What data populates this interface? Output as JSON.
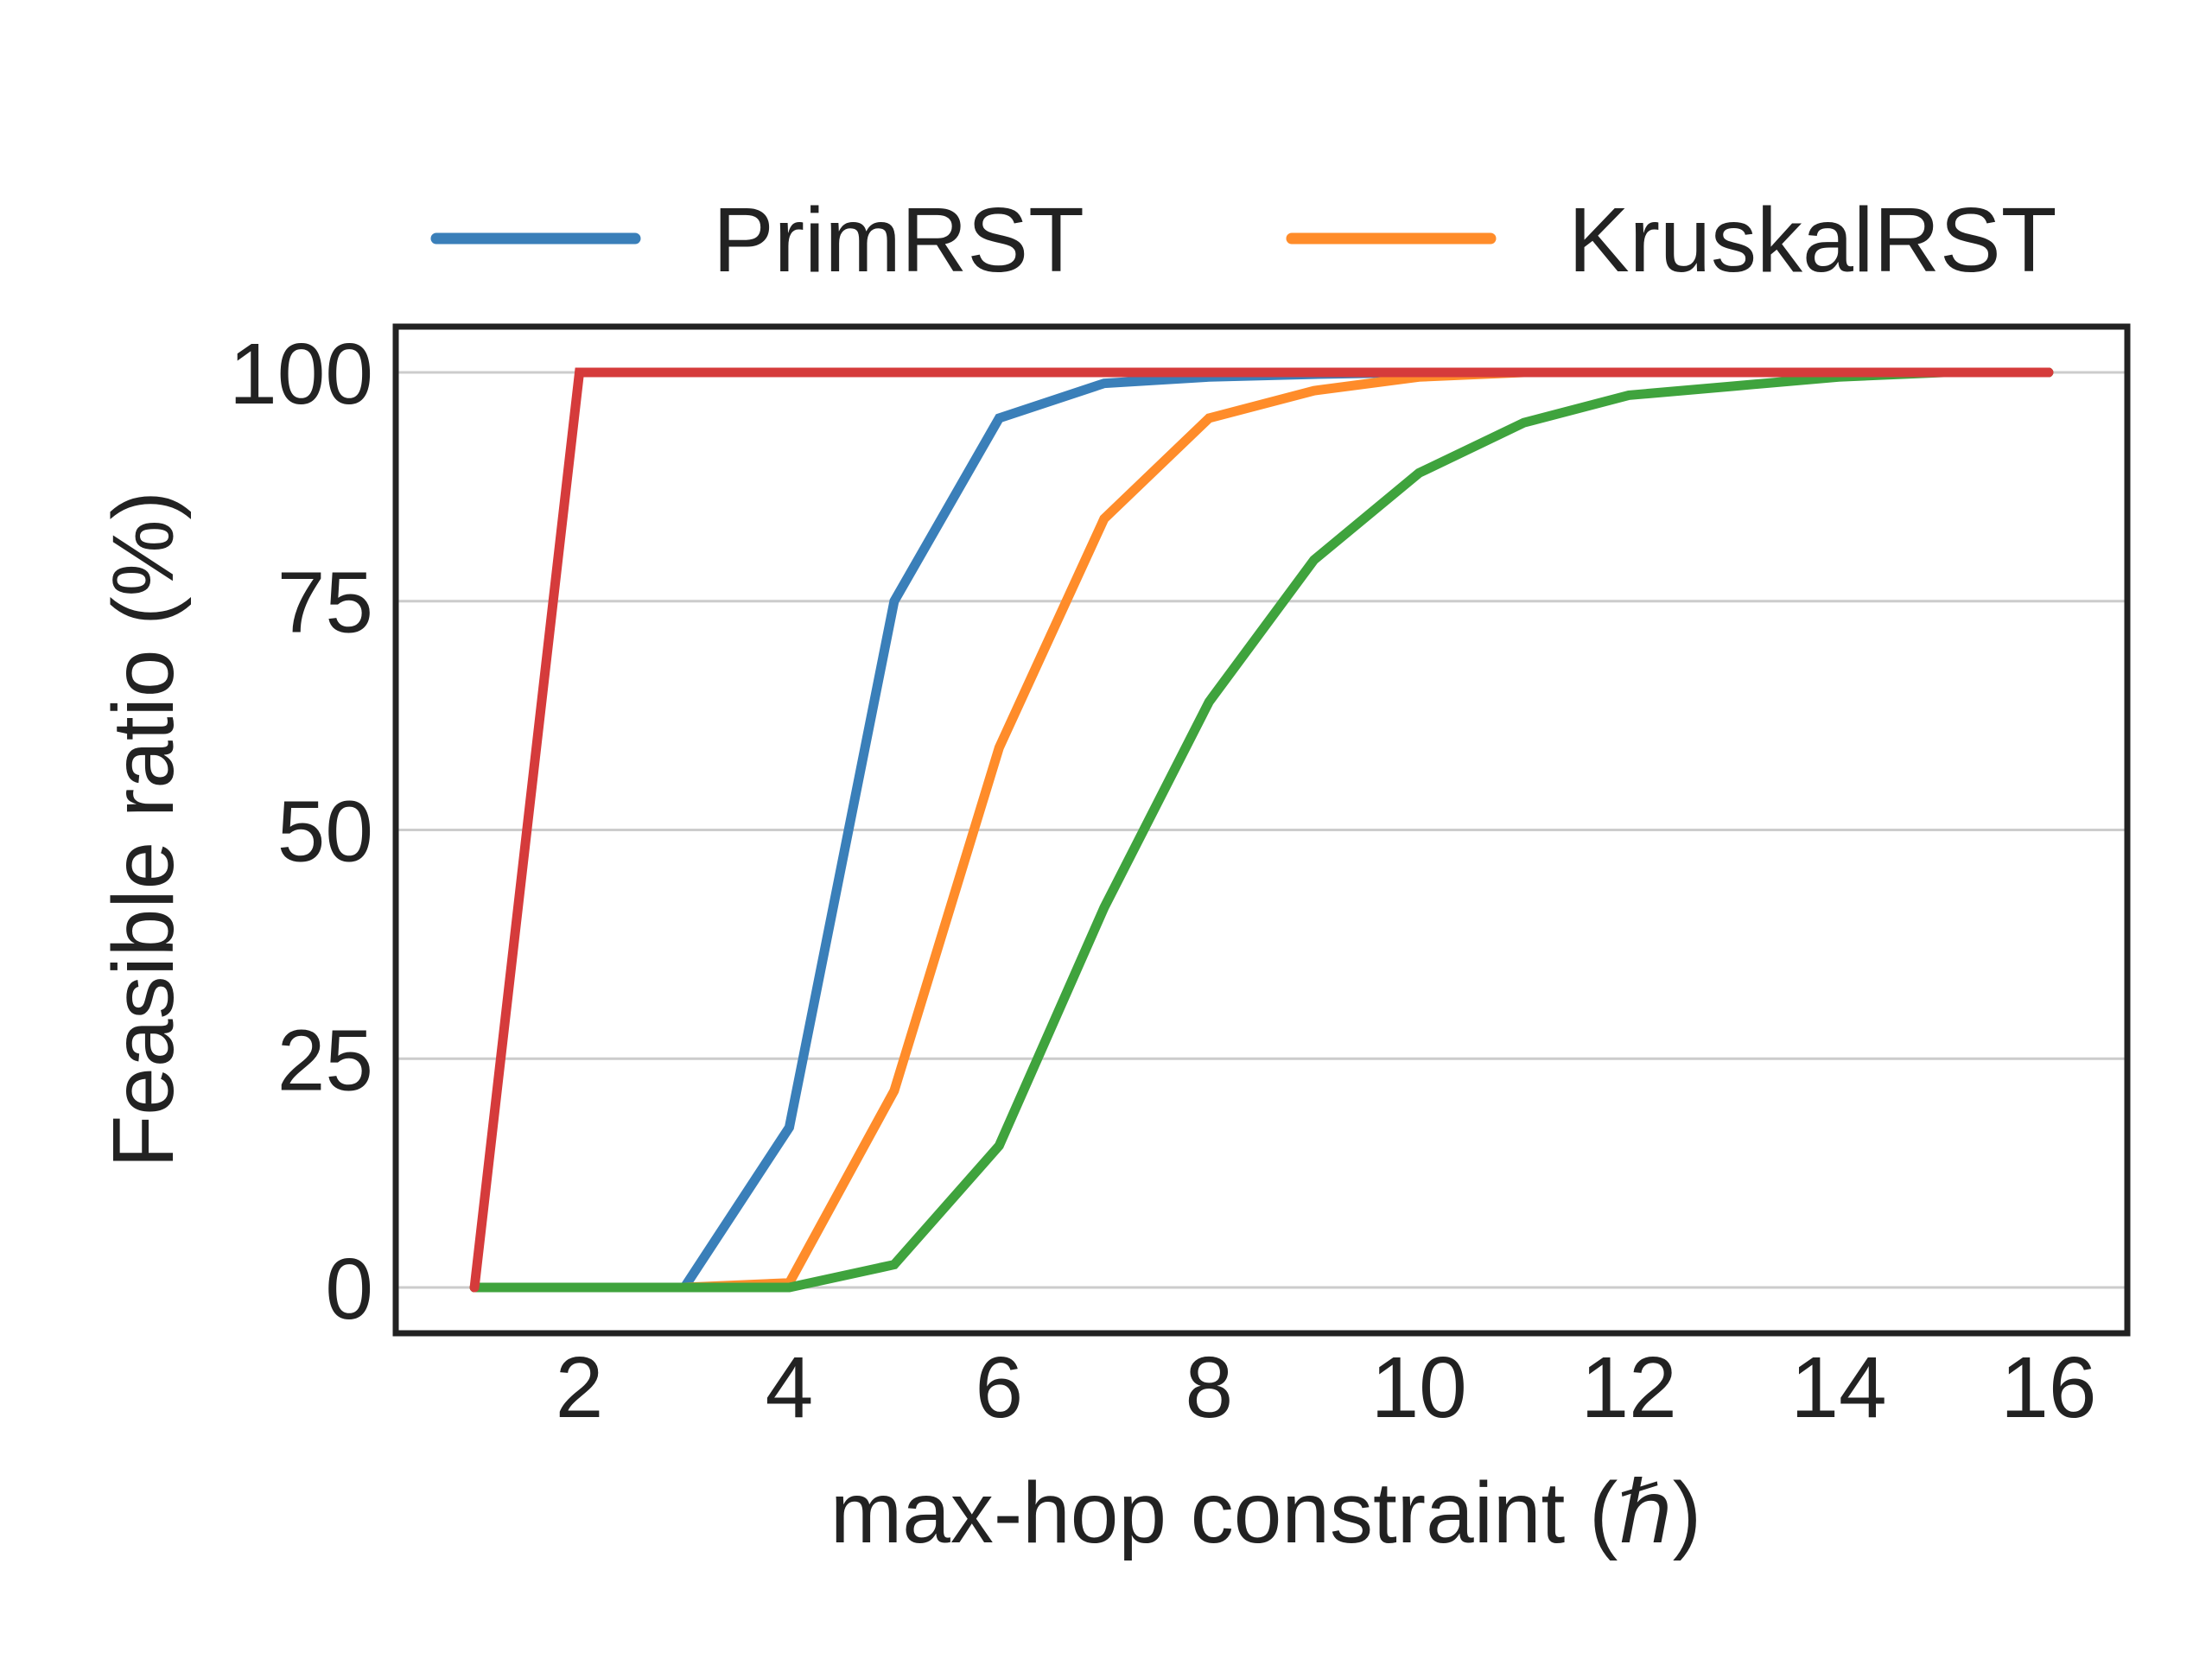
{
  "chart_data": {
    "type": "line",
    "title": "",
    "xlabel": "max-hop constraint (ℏ)",
    "ylabel": "Feasible ratio (%)",
    "xlim": [
      0.25,
      16.75
    ],
    "ylim": [
      -5,
      105
    ],
    "xticks": [
      2,
      4,
      6,
      8,
      10,
      12,
      14,
      16
    ],
    "yticks": [
      0,
      25,
      50,
      75,
      100
    ],
    "grid": "horizontal",
    "legend_position": "top",
    "x": [
      1,
      2,
      3,
      4,
      5,
      6,
      7,
      8,
      9,
      10,
      11,
      12,
      13,
      14,
      15,
      16
    ],
    "series": [
      {
        "name": "PrimRST",
        "color": "#3a7fb9",
        "values": [
          0,
          0,
          0,
          17.5,
          75,
          95,
          98.8,
          99.5,
          99.8,
          100,
          100,
          100,
          100,
          100,
          100,
          100
        ]
      },
      {
        "name": "KruskalRST",
        "color": "#ff8c2a",
        "values": [
          0,
          0,
          0,
          0.5,
          21.5,
          59,
          84,
          95,
          98,
          99.5,
          100,
          100,
          100,
          100,
          100,
          100
        ]
      },
      {
        "name": "",
        "color": "#3fa33d",
        "values": [
          0,
          0,
          0,
          0,
          2.5,
          15.5,
          41.5,
          64,
          79.5,
          89,
          94.5,
          97.5,
          98.5,
          99.5,
          100,
          100
        ]
      },
      {
        "name": "",
        "color": "#d53b3b",
        "values": [
          0,
          100,
          100,
          100,
          100,
          100,
          100,
          100,
          100,
          100,
          100,
          100,
          100,
          100,
          100,
          100
        ]
      }
    ]
  }
}
